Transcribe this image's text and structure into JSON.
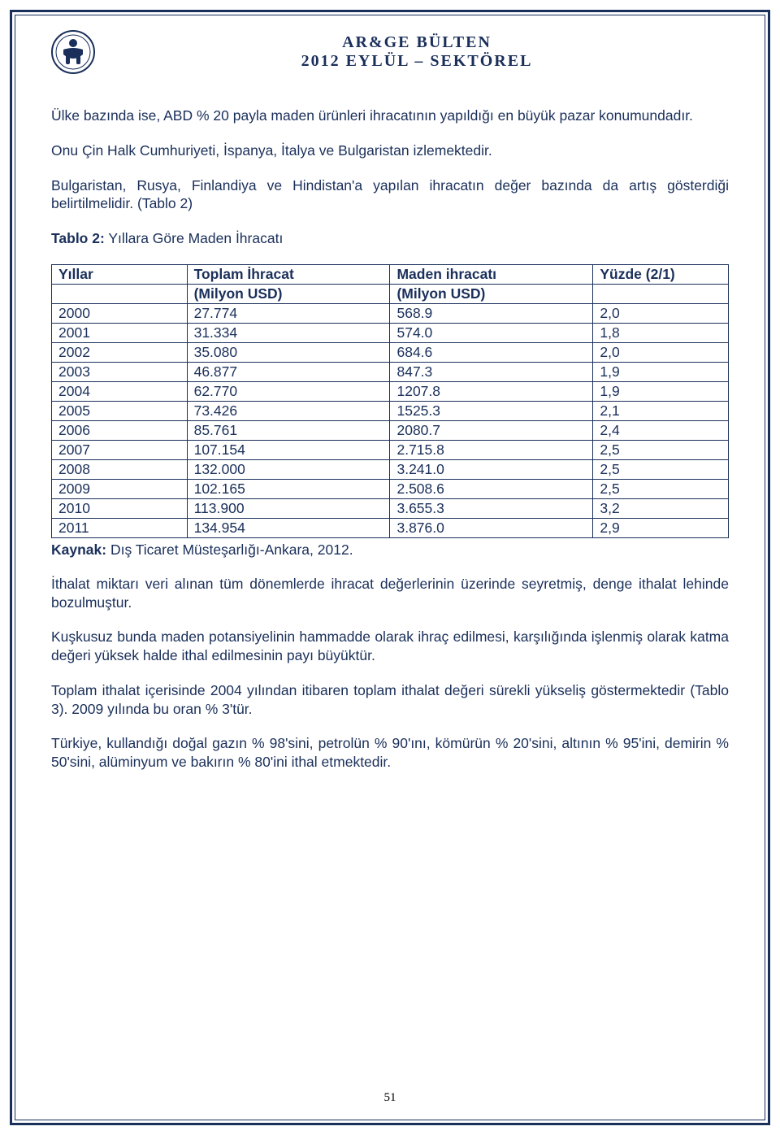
{
  "header": {
    "title": "AR&GE BÜLTEN",
    "subtitle": "2012 EYLÜL – SEKTÖREL"
  },
  "paragraphs": {
    "p1": "Ülke bazında ise, ABD % 20 payla maden ürünleri ihracatının yapıldığı en büyük pazar konumundadır.",
    "p2": "Onu Çin Halk Cumhuriyeti, İspanya, İtalya ve Bulgaristan izlemektedir.",
    "p3": "Bulgaristan, Rusya, Finlandiya ve Hindistan'a yapılan ihracatın değer bazında da artış gösterdiği belirtilmelidir. (Tablo 2)",
    "table_caption_bold": "Tablo 2:",
    "table_caption_rest": " Yıllara Göre Maden İhracatı",
    "p4": "İthalat miktarı veri alınan tüm dönemlerde ihracat değerlerinin üzerinde seyretmiş, denge ithalat lehinde bozulmuştur.",
    "p5": "Kuşkusuz bunda maden potansiyelinin hammadde olarak ihraç edilmesi, karşılığında işlenmiş olarak katma değeri yüksek halde ithal edilmesinin payı büyüktür.",
    "p6": "Toplam ithalat içerisinde 2004 yılından itibaren toplam ithalat değeri sürekli yükseliş göstermektedir (Tablo 3). 2009 yılında bu oran % 3'tür.",
    "p7": "Türkiye, kullandığı doğal gazın % 98'sini, petrolün % 90'ını, kömürün % 20'sini, altının % 95'ini, demirin % 50'sini, alüminyum ve bakırın % 80'ini ithal etmektedir."
  },
  "table": {
    "type": "table",
    "border_color": "#1a2f5a",
    "text_color": "#1a2f5a",
    "columns": [
      {
        "label1": "Yıllar",
        "label2": ""
      },
      {
        "label1": "Toplam İhracat",
        "label2": "(Milyon USD)"
      },
      {
        "label1": "Maden ihracatı",
        "label2": "(Milyon USD)"
      },
      {
        "label1": "Yüzde (2/1)",
        "label2": ""
      }
    ],
    "rows": [
      [
        "2000",
        "27.774",
        "568.9",
        "2,0"
      ],
      [
        "2001",
        "31.334",
        "574.0",
        "1,8"
      ],
      [
        "2002",
        "35.080",
        "684.6",
        "2,0"
      ],
      [
        "2003",
        "46.877",
        "847.3",
        "1,9"
      ],
      [
        "2004",
        "62.770",
        "1207.8",
        "1,9"
      ],
      [
        "2005",
        "73.426",
        "1525.3",
        "2,1"
      ],
      [
        "2006",
        "85.761",
        "2080.7",
        "2,4"
      ],
      [
        "2007",
        "107.154",
        "2.715.8",
        "2,5"
      ],
      [
        "2008",
        "132.000",
        "3.241.0",
        "2,5"
      ],
      [
        "2009",
        "102.165",
        "2.508.6",
        "2,5"
      ],
      [
        "2010",
        "113.900",
        "3.655.3",
        "3,2"
      ],
      [
        "2011",
        "134.954",
        "3.876.0",
        "2,9"
      ]
    ]
  },
  "source": {
    "label": "Kaynak:",
    "text": " Dış Ticaret Müsteşarlığı-Ankara, 2012."
  },
  "page_number": "51",
  "colors": {
    "primary": "#1a2f5a",
    "background": "#ffffff"
  }
}
